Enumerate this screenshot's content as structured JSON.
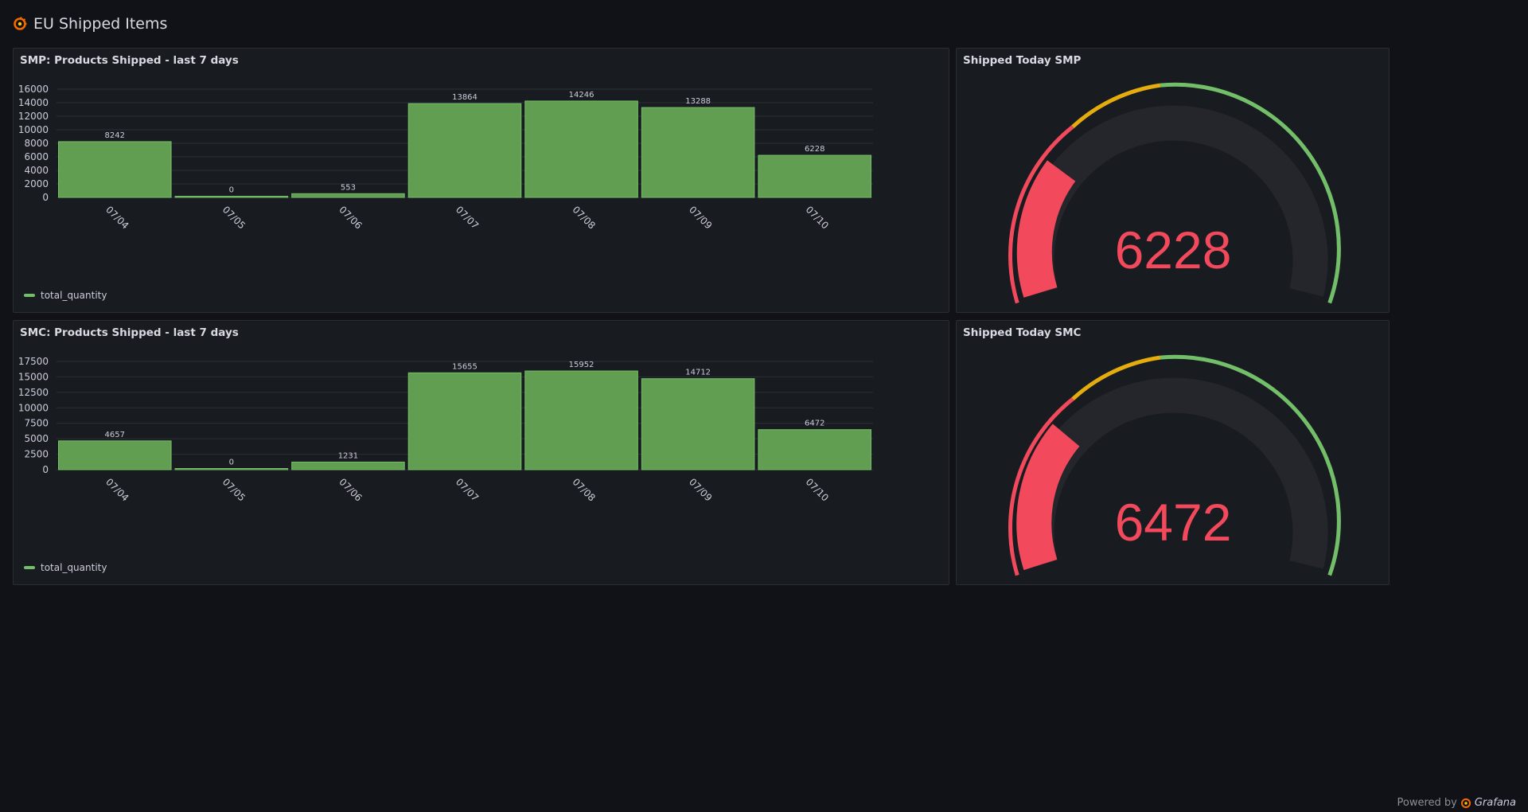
{
  "dashboard": {
    "title": "EU Shipped Items",
    "logo_icon": "grafana-logo-icon"
  },
  "panels": {
    "smp_bar": {
      "title": "SMP: Products Shipped - last 7 days",
      "legend": "total_quantity"
    },
    "smp_gauge": {
      "title": "Shipped Today SMP",
      "value": "6228"
    },
    "smc_bar": {
      "title": "SMC: Products Shipped - last 7 days",
      "legend": "total_quantity"
    },
    "smc_gauge": {
      "title": "Shipped Today SMC",
      "value": "6472"
    }
  },
  "colors": {
    "bar_fill": "#629e51",
    "bar_stroke": "#73bf69",
    "gauge_red": "#f2495c",
    "gauge_yellow": "#fade2a",
    "gauge_orange": "#e5ac0e",
    "gauge_green": "#73bf69",
    "gauge_track": "#24262c"
  },
  "chart_data": [
    {
      "type": "bar",
      "categories": [
        "07/04",
        "07/05",
        "07/06",
        "07/07",
        "07/08",
        "07/09",
        "07/10"
      ],
      "series": [
        {
          "name": "total_quantity",
          "values": [
            8242,
            0,
            553,
            13864,
            14246,
            13288,
            6228
          ]
        }
      ],
      "yticks": [
        0,
        2000,
        4000,
        6000,
        8000,
        10000,
        12000,
        14000,
        16000
      ],
      "ylim": [
        0,
        16000
      ],
      "legend": "bottom-left"
    },
    {
      "type": "bar",
      "categories": [
        "07/04",
        "07/05",
        "07/06",
        "07/07",
        "07/08",
        "07/09",
        "07/10"
      ],
      "series": [
        {
          "name": "total_quantity",
          "values": [
            4657,
            0,
            1231,
            15655,
            15952,
            14712,
            6472
          ]
        }
      ],
      "yticks": [
        0,
        2500,
        5000,
        7500,
        10000,
        12500,
        15000,
        17500
      ],
      "ylim": [
        0,
        17500
      ],
      "legend": "bottom-left"
    }
  ],
  "footer": {
    "powered_by": "Powered by",
    "brand": "Grafana"
  }
}
